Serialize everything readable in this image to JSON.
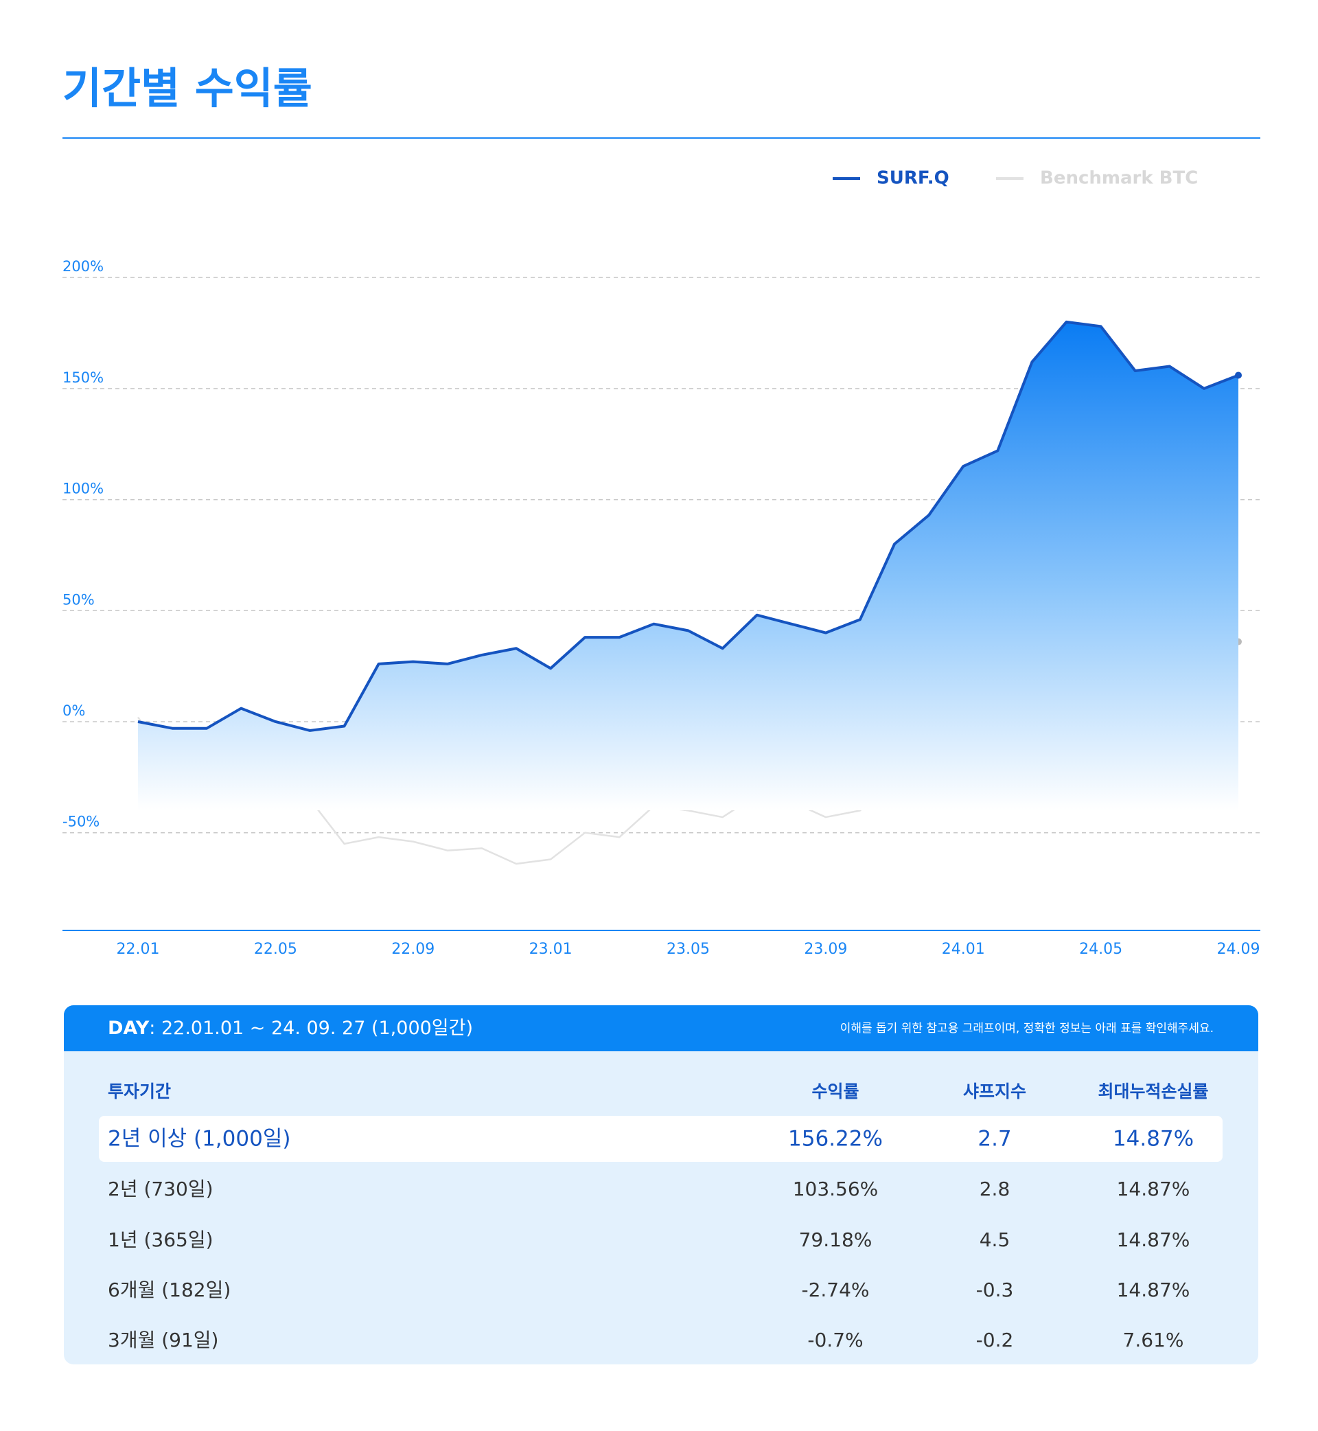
{
  "chart_data": {
    "type": "line",
    "title": "기간별 수익률",
    "x": [
      "22.01",
      null,
      null,
      null,
      "22.05",
      null,
      null,
      null,
      "22.09",
      null,
      null,
      null,
      "23.01",
      null,
      null,
      null,
      "23.05",
      null,
      null,
      null,
      "23.09",
      null,
      null,
      null,
      "24.01",
      null,
      null,
      null,
      "24.05",
      null,
      null,
      null,
      "24.09"
    ],
    "series": [
      {
        "name": "SURF.Q",
        "color": "#1554c0",
        "values": [
          0,
          -3,
          -3,
          6,
          0,
          -4,
          -2,
          26,
          27,
          26,
          30,
          33,
          24,
          38,
          38,
          44,
          41,
          33,
          48,
          44,
          40,
          46,
          80,
          93,
          115,
          122,
          162,
          180,
          178,
          158,
          160,
          150,
          156
        ]
      },
      {
        "name": "Benchmark BTC",
        "color": "#e2e2e2",
        "values": [
          2,
          -20,
          -10,
          -8,
          -20,
          -35,
          -55,
          -52,
          -54,
          -58,
          -57,
          -64,
          -62,
          -50,
          -52,
          -38,
          -40,
          -43,
          -33,
          -36,
          -43,
          -40,
          -25,
          -12,
          -10,
          10,
          45,
          45,
          50,
          30,
          40,
          25,
          36
        ]
      }
    ],
    "ylim": [
      -94,
      222
    ],
    "yticks": [
      {
        "value": -50,
        "label": "-50%"
      },
      {
        "value": 0,
        "label": "0%"
      },
      {
        "value": 50,
        "label": "50%"
      },
      {
        "value": 100,
        "label": "100%"
      },
      {
        "value": 150,
        "label": "150%"
      },
      {
        "value": 200,
        "label": "200%"
      }
    ],
    "grid": true
  },
  "table": {
    "day_label": "DAY",
    "day_range": ": 22.01.01 ~ 24. 09. 27 (1,000일간)",
    "note": "이해를 돕기 위한 참고용 그래프이며, 정확한 정보는 아래 표를 확인해주세요.",
    "header": [
      "투자기간",
      "수익률",
      "샤프지수",
      "최대누적손실률"
    ],
    "rows": [
      [
        "2년 이상 (1,000일)",
        "156.22%",
        "2.7",
        "14.87%"
      ],
      [
        "2년 (730일)",
        "103.56%",
        "2.8",
        "14.87%"
      ],
      [
        "1년 (365일)",
        "79.18%",
        "4.5",
        "14.87%"
      ],
      [
        "6개월 (182일)",
        "-2.74%",
        "-0.3",
        "14.87%"
      ],
      [
        "3개월 (91일)",
        "-0.7%",
        "-0.2",
        "7.61%"
      ]
    ]
  }
}
